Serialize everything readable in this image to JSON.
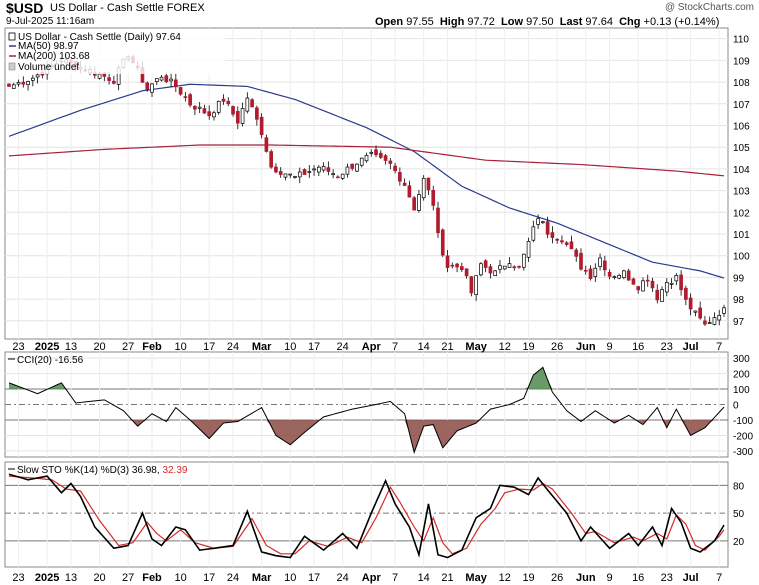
{
  "header": {
    "symbol": "$USD",
    "name": "US Dollar - Cash Settle FOREX",
    "timestamp": "9-Jul-2025 11:16am",
    "watermark": "@ StockCharts.com",
    "quote": [
      {
        "label": "Open",
        "value": "97.55"
      },
      {
        "label": "High",
        "value": "97.72"
      },
      {
        "label": "Low",
        "value": "97.50"
      },
      {
        "label": "Last",
        "value": "97.64"
      },
      {
        "label": "Chg",
        "value": "+0.13 (+0.14%)"
      }
    ]
  },
  "legend": {
    "main": "US Dollar - Cash Settle (Daily) 97.64",
    "ma50": "MA(50) 98.97",
    "ma200": "MA(200) 103.68",
    "volume": "Volume undef",
    "cci": "CCI(20) -16.56",
    "sto_prefix": "Slow STO %K(14) %D(3) 36.98,",
    "sto_d": "32.39"
  },
  "colors": {
    "up": "#ffffff",
    "down": "#b01c2e",
    "ma50": "#2b3a8f",
    "ma200": "#a8203a",
    "cci_pos": "#4f8a4f",
    "cci_neg": "#8a4a44",
    "sto_k": "#000000",
    "sto_d": "#d42a2a"
  },
  "chart_data": [
    {
      "type": "candlestick",
      "title": "US Dollar - Cash Settle (Daily)",
      "y_ticks": [
        97,
        98,
        99,
        100,
        101,
        102,
        103,
        104,
        105,
        106,
        107,
        108,
        109,
        110
      ],
      "ylim": [
        96.3,
        110.4
      ],
      "date_labels": [
        "23",
        "2025",
        "13",
        "20",
        "27",
        "Feb",
        "10",
        "17",
        "24",
        "Mar",
        "10",
        "17",
        "24",
        "Apr",
        "7",
        "14",
        "21",
        "May",
        "12",
        "19",
        "26",
        "Jun",
        "9",
        "16",
        "23",
        "Jul",
        "7"
      ],
      "close_anchors": [
        {
          "index": 0,
          "close": 107.8
        },
        {
          "index": 5,
          "close": 108.2
        },
        {
          "index": 11,
          "close": 109.0
        },
        {
          "index": 16,
          "close": 108.6
        },
        {
          "index": 22,
          "close": 108.1
        },
        {
          "index": 25,
          "close": 109.3
        },
        {
          "index": 29,
          "close": 107.7
        },
        {
          "index": 32,
          "close": 108.3
        },
        {
          "index": 35,
          "close": 107.8
        },
        {
          "index": 38,
          "close": 107.0
        },
        {
          "index": 42,
          "close": 106.5
        },
        {
          "index": 45,
          "close": 107.2
        },
        {
          "index": 48,
          "close": 106.2
        },
        {
          "index": 50,
          "close": 107.3
        },
        {
          "index": 53,
          "close": 105.7
        },
        {
          "index": 55,
          "close": 104.1
        },
        {
          "index": 60,
          "close": 103.6
        },
        {
          "index": 65,
          "close": 104.1
        },
        {
          "index": 69,
          "close": 103.7
        },
        {
          "index": 73,
          "close": 104.3
        },
        {
          "index": 76,
          "close": 104.6
        },
        {
          "index": 80,
          "close": 104.2
        },
        {
          "index": 83,
          "close": 103.3
        },
        {
          "index": 85,
          "close": 102.2
        },
        {
          "index": 87,
          "close": 103.5
        },
        {
          "index": 89,
          "close": 102.4
        },
        {
          "index": 90,
          "close": 100.9
        },
        {
          "index": 92,
          "close": 99.5
        },
        {
          "index": 95,
          "close": 99.5
        },
        {
          "index": 97,
          "close": 98.3
        },
        {
          "index": 99,
          "close": 99.6
        },
        {
          "index": 102,
          "close": 99.2
        },
        {
          "index": 105,
          "close": 99.8
        },
        {
          "index": 107,
          "close": 99.4
        },
        {
          "index": 109,
          "close": 100.6
        },
        {
          "index": 111,
          "close": 101.8
        },
        {
          "index": 113,
          "close": 101.1
        },
        {
          "index": 116,
          "close": 100.8
        },
        {
          "index": 118,
          "close": 100.2
        },
        {
          "index": 120,
          "close": 99.5
        },
        {
          "index": 122,
          "close": 99.1
        },
        {
          "index": 124,
          "close": 99.9
        },
        {
          "index": 126,
          "close": 99.1
        },
        {
          "index": 129,
          "close": 99.2
        },
        {
          "index": 132,
          "close": 98.6
        },
        {
          "index": 134,
          "close": 99.0
        },
        {
          "index": 136,
          "close": 98.1
        },
        {
          "index": 138,
          "close": 98.8
        },
        {
          "index": 140,
          "close": 99.0
        },
        {
          "index": 142,
          "close": 97.9
        },
        {
          "index": 144,
          "close": 97.3
        },
        {
          "index": 146,
          "close": 96.8
        },
        {
          "index": 148,
          "close": 97.2
        },
        {
          "index": 150,
          "close": 97.6
        }
      ],
      "ma50_anchors": [
        {
          "index": 0,
          "value": 105.5
        },
        {
          "index": 15,
          "value": 106.7
        },
        {
          "index": 28,
          "value": 107.6
        },
        {
          "index": 38,
          "value": 107.9
        },
        {
          "index": 50,
          "value": 107.8
        },
        {
          "index": 60,
          "value": 107.2
        },
        {
          "index": 75,
          "value": 105.9
        },
        {
          "index": 85,
          "value": 104.8
        },
        {
          "index": 95,
          "value": 103.2
        },
        {
          "index": 105,
          "value": 102.2
        },
        {
          "index": 115,
          "value": 101.5
        },
        {
          "index": 125,
          "value": 100.6
        },
        {
          "index": 135,
          "value": 99.7
        },
        {
          "index": 145,
          "value": 99.3
        },
        {
          "index": 150,
          "value": 98.97
        }
      ],
      "ma200_anchors": [
        {
          "index": 0,
          "value": 104.6
        },
        {
          "index": 20,
          "value": 104.9
        },
        {
          "index": 40,
          "value": 105.1
        },
        {
          "index": 55,
          "value": 105.1
        },
        {
          "index": 80,
          "value": 105.0
        },
        {
          "index": 100,
          "value": 104.4
        },
        {
          "index": 120,
          "value": 104.2
        },
        {
          "index": 140,
          "value": 103.9
        },
        {
          "index": 150,
          "value": 103.68
        }
      ]
    },
    {
      "type": "area",
      "title": "CCI(20)",
      "y_ticks": [
        300,
        200,
        100,
        0,
        -100,
        -200,
        -300
      ],
      "ylim": [
        -320,
        320
      ],
      "anchors": [
        {
          "index": 0,
          "value": 140
        },
        {
          "index": 6,
          "value": 70
        },
        {
          "index": 11,
          "value": 140
        },
        {
          "index": 14,
          "value": 10
        },
        {
          "index": 20,
          "value": 30
        },
        {
          "index": 24,
          "value": -40
        },
        {
          "index": 27,
          "value": -140
        },
        {
          "index": 30,
          "value": -60
        },
        {
          "index": 33,
          "value": -110
        },
        {
          "index": 35,
          "value": -20
        },
        {
          "index": 38,
          "value": -100
        },
        {
          "index": 42,
          "value": -220
        },
        {
          "index": 45,
          "value": -120
        },
        {
          "index": 48,
          "value": -110
        },
        {
          "index": 53,
          "value": -20
        },
        {
          "index": 56,
          "value": -200
        },
        {
          "index": 59,
          "value": -260
        },
        {
          "index": 62,
          "value": -180
        },
        {
          "index": 66,
          "value": -80
        },
        {
          "index": 72,
          "value": -30
        },
        {
          "index": 77,
          "value": 0
        },
        {
          "index": 80,
          "value": 20
        },
        {
          "index": 83,
          "value": -60
        },
        {
          "index": 85,
          "value": -310
        },
        {
          "index": 87,
          "value": -140
        },
        {
          "index": 89,
          "value": -130
        },
        {
          "index": 91,
          "value": -280
        },
        {
          "index": 94,
          "value": -170
        },
        {
          "index": 98,
          "value": -120
        },
        {
          "index": 101,
          "value": -30
        },
        {
          "index": 105,
          "value": 0
        },
        {
          "index": 108,
          "value": 40
        },
        {
          "index": 110,
          "value": 190
        },
        {
          "index": 112,
          "value": 240
        },
        {
          "index": 114,
          "value": 80
        },
        {
          "index": 117,
          "value": -40
        },
        {
          "index": 120,
          "value": -110
        },
        {
          "index": 123,
          "value": -40
        },
        {
          "index": 127,
          "value": -120
        },
        {
          "index": 130,
          "value": -70
        },
        {
          "index": 133,
          "value": -130
        },
        {
          "index": 136,
          "value": -20
        },
        {
          "index": 138,
          "value": -150
        },
        {
          "index": 140,
          "value": -30
        },
        {
          "index": 143,
          "value": -200
        },
        {
          "index": 146,
          "value": -150
        },
        {
          "index": 150,
          "value": -17
        }
      ]
    },
    {
      "type": "line",
      "title": "Slow STO %K(14) %D(3)",
      "y_ticks": [
        80,
        50,
        20
      ],
      "ylim": [
        -5,
        102
      ],
      "series": [
        {
          "name": "%K",
          "anchors": [
            {
              "index": 0,
              "value": 92
            },
            {
              "index": 4,
              "value": 86
            },
            {
              "index": 8,
              "value": 90
            },
            {
              "index": 11,
              "value": 72
            },
            {
              "index": 13,
              "value": 82
            },
            {
              "index": 15,
              "value": 68
            },
            {
              "index": 18,
              "value": 35
            },
            {
              "index": 22,
              "value": 12
            },
            {
              "index": 25,
              "value": 15
            },
            {
              "index": 28,
              "value": 50
            },
            {
              "index": 30,
              "value": 22
            },
            {
              "index": 32,
              "value": 15
            },
            {
              "index": 35,
              "value": 35
            },
            {
              "index": 37,
              "value": 32
            },
            {
              "index": 40,
              "value": 10
            },
            {
              "index": 43,
              "value": 12
            },
            {
              "index": 47,
              "value": 15
            },
            {
              "index": 50,
              "value": 52
            },
            {
              "index": 53,
              "value": 8
            },
            {
              "index": 56,
              "value": 4
            },
            {
              "index": 59,
              "value": 2
            },
            {
              "index": 62,
              "value": 25
            },
            {
              "index": 66,
              "value": 10
            },
            {
              "index": 70,
              "value": 28
            },
            {
              "index": 73,
              "value": 12
            },
            {
              "index": 76,
              "value": 50
            },
            {
              "index": 79,
              "value": 85
            },
            {
              "index": 81,
              "value": 60
            },
            {
              "index": 84,
              "value": 35
            },
            {
              "index": 86,
              "value": 5
            },
            {
              "index": 88,
              "value": 60
            },
            {
              "index": 90,
              "value": 5
            },
            {
              "index": 92,
              "value": 2
            },
            {
              "index": 95,
              "value": 10
            },
            {
              "index": 98,
              "value": 45
            },
            {
              "index": 101,
              "value": 55
            },
            {
              "index": 103,
              "value": 80
            },
            {
              "index": 106,
              "value": 78
            },
            {
              "index": 109,
              "value": 70
            },
            {
              "index": 111,
              "value": 88
            },
            {
              "index": 113,
              "value": 75
            },
            {
              "index": 117,
              "value": 50
            },
            {
              "index": 120,
              "value": 20
            },
            {
              "index": 122,
              "value": 35
            },
            {
              "index": 126,
              "value": 12
            },
            {
              "index": 130,
              "value": 28
            },
            {
              "index": 132,
              "value": 15
            },
            {
              "index": 135,
              "value": 35
            },
            {
              "index": 137,
              "value": 15
            },
            {
              "index": 139,
              "value": 55
            },
            {
              "index": 141,
              "value": 40
            },
            {
              "index": 143,
              "value": 12
            },
            {
              "index": 145,
              "value": 8
            },
            {
              "index": 148,
              "value": 20
            },
            {
              "index": 150,
              "value": 37
            }
          ]
        },
        {
          "name": "%D",
          "anchors": [
            {
              "index": 0,
              "value": 90
            },
            {
              "index": 5,
              "value": 88
            },
            {
              "index": 9,
              "value": 86
            },
            {
              "index": 12,
              "value": 76
            },
            {
              "index": 15,
              "value": 74
            },
            {
              "index": 19,
              "value": 42
            },
            {
              "index": 23,
              "value": 15
            },
            {
              "index": 26,
              "value": 18
            },
            {
              "index": 29,
              "value": 40
            },
            {
              "index": 31,
              "value": 28
            },
            {
              "index": 33,
              "value": 20
            },
            {
              "index": 36,
              "value": 32
            },
            {
              "index": 39,
              "value": 18
            },
            {
              "index": 43,
              "value": 12
            },
            {
              "index": 47,
              "value": 14
            },
            {
              "index": 51,
              "value": 44
            },
            {
              "index": 54,
              "value": 15
            },
            {
              "index": 57,
              "value": 6
            },
            {
              "index": 60,
              "value": 6
            },
            {
              "index": 63,
              "value": 20
            },
            {
              "index": 67,
              "value": 14
            },
            {
              "index": 71,
              "value": 24
            },
            {
              "index": 74,
              "value": 18
            },
            {
              "index": 77,
              "value": 45
            },
            {
              "index": 80,
              "value": 78
            },
            {
              "index": 82,
              "value": 62
            },
            {
              "index": 85,
              "value": 35
            },
            {
              "index": 87,
              "value": 20
            },
            {
              "index": 89,
              "value": 45
            },
            {
              "index": 91,
              "value": 18
            },
            {
              "index": 93,
              "value": 6
            },
            {
              "index": 96,
              "value": 12
            },
            {
              "index": 99,
              "value": 38
            },
            {
              "index": 102,
              "value": 55
            },
            {
              "index": 104,
              "value": 72
            },
            {
              "index": 107,
              "value": 76
            },
            {
              "index": 110,
              "value": 75
            },
            {
              "index": 112,
              "value": 82
            },
            {
              "index": 114,
              "value": 76
            },
            {
              "index": 118,
              "value": 50
            },
            {
              "index": 121,
              "value": 28
            },
            {
              "index": 123,
              "value": 30
            },
            {
              "index": 127,
              "value": 18
            },
            {
              "index": 131,
              "value": 24
            },
            {
              "index": 133,
              "value": 20
            },
            {
              "index": 136,
              "value": 28
            },
            {
              "index": 138,
              "value": 22
            },
            {
              "index": 140,
              "value": 48
            },
            {
              "index": 142,
              "value": 38
            },
            {
              "index": 144,
              "value": 15
            },
            {
              "index": 146,
              "value": 10
            },
            {
              "index": 149,
              "value": 25
            },
            {
              "index": 150,
              "value": 32
            }
          ]
        }
      ]
    }
  ]
}
